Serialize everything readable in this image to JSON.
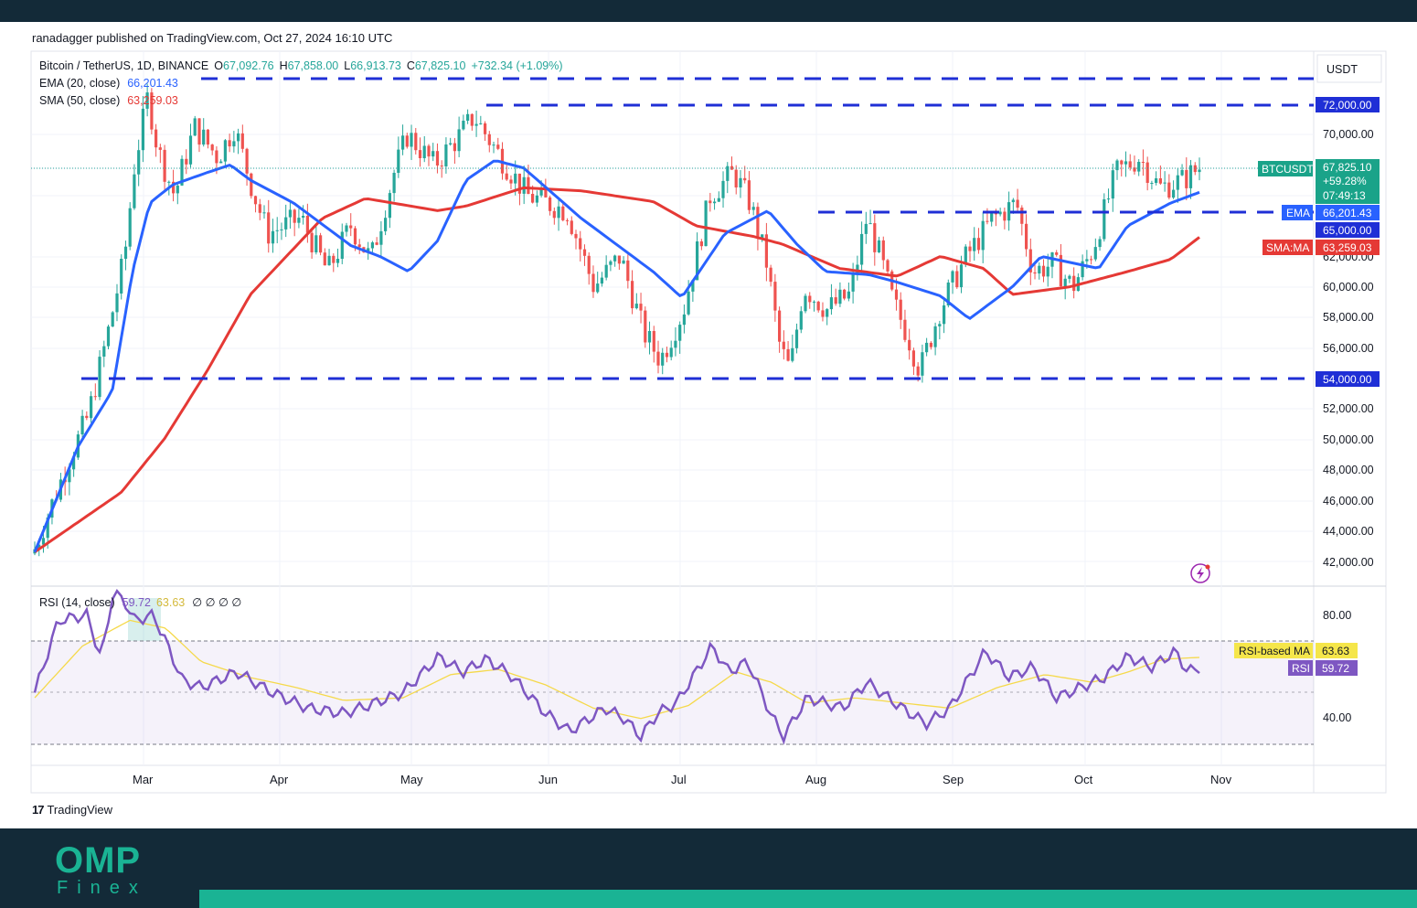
{
  "header": {
    "publish_text": "ranadagger published on TradingView.com, Oct 27, 2024 16:10 UTC",
    "symbol": "Bitcoin / TetherUS, 1D, BINANCE",
    "open": "67,092.76",
    "high": "67,858.00",
    "low": "66,913.73",
    "close": "67,825.10",
    "change": "+732.34 (+1.09%)",
    "ema_label": "EMA (20, close)",
    "ema_value": "66,201.43",
    "sma_label": "SMA (50, close)",
    "sma_value": "63,259.03",
    "rsi_label": "RSI (14, close)",
    "rsi_value": "59.72",
    "rsi_ma_value": "63.63",
    "rsi_extra": "∅ ∅ ∅ ∅"
  },
  "price_axis": {
    "currency": "USDT",
    "ticks": [
      "70,000.00",
      "62,000.00",
      "60,000.00",
      "58,000.00",
      "56,000.00",
      "52,000.00",
      "50,000.00",
      "48,000.00",
      "46,000.00",
      "44,000.00",
      "42,000.00"
    ],
    "rsi_ticks": [
      "80.00",
      "40.00"
    ]
  },
  "tags": {
    "level_72": "72,000.00",
    "symbol_tag": "BTCUSDT",
    "last_price": "67,825.10",
    "pct": "+59.28%",
    "countdown": "07:49:13",
    "ema_tag": "EMA",
    "ema_val": "66,201.43",
    "level_65": "65,000.00",
    "sma_tag": "SMA:MA",
    "sma_val": "63,259.03",
    "level_54": "54,000.00",
    "rsi_ma_tag": "RSI-based MA",
    "rsi_ma_val": "63.63",
    "rsi_tag": "RSI",
    "rsi_val": "59.72"
  },
  "time_axis": [
    "Mar",
    "Apr",
    "May",
    "Jun",
    "Jul",
    "Aug",
    "Sep",
    "Oct",
    "Nov"
  ],
  "footer": {
    "tradingview": "TradingView",
    "brand_big": "OMP",
    "brand_small": "Finex"
  },
  "colors": {
    "up": "#26a69a",
    "down": "#ef5350",
    "ema": "#2962ff",
    "sma": "#e53935",
    "rsi": "#7e57c2",
    "rsi_ma": "#f5d94a",
    "levels": "#1f2fd6"
  },
  "chart_data": {
    "type": "candlestick",
    "title": "Bitcoin / TetherUS, 1D, BINANCE",
    "x_range": [
      "2024-02-01",
      "2024-10-27"
    ],
    "ylim": [
      41000,
      74500
    ],
    "horizontal_levels": [
      73500,
      72000,
      65000,
      54000
    ],
    "ema20_close": [
      [
        0,
        42600
      ],
      [
        15,
        49500
      ],
      [
        27,
        53200
      ],
      [
        34,
        61000
      ],
      [
        40,
        65500
      ],
      [
        48,
        66700
      ],
      [
        60,
        67500
      ],
      [
        68,
        68000
      ],
      [
        75,
        67000
      ],
      [
        90,
        65500
      ],
      [
        110,
        62700
      ],
      [
        120,
        62000
      ],
      [
        130,
        61000
      ],
      [
        140,
        63000
      ],
      [
        150,
        67000
      ],
      [
        160,
        68300
      ],
      [
        170,
        67800
      ],
      [
        190,
        64500
      ],
      [
        215,
        61000
      ],
      [
        225,
        59300
      ],
      [
        240,
        63500
      ],
      [
        255,
        65000
      ],
      [
        265,
        62800
      ],
      [
        275,
        61000
      ],
      [
        290,
        60800
      ],
      [
        300,
        60300
      ],
      [
        315,
        59400
      ],
      [
        325,
        57900
      ],
      [
        340,
        60000
      ],
      [
        350,
        62000
      ],
      [
        370,
        61200
      ],
      [
        380,
        64000
      ],
      [
        395,
        65500
      ],
      [
        405,
        66201
      ]
    ],
    "sma50_close": [
      [
        0,
        42600
      ],
      [
        30,
        46500
      ],
      [
        45,
        50000
      ],
      [
        60,
        54500
      ],
      [
        75,
        59500
      ],
      [
        100,
        64500
      ],
      [
        115,
        65800
      ],
      [
        140,
        65000
      ],
      [
        150,
        65300
      ],
      [
        170,
        66500
      ],
      [
        190,
        66300
      ],
      [
        215,
        65600
      ],
      [
        230,
        64000
      ],
      [
        250,
        63300
      ],
      [
        260,
        62800
      ],
      [
        280,
        61200
      ],
      [
        300,
        60700
      ],
      [
        315,
        62000
      ],
      [
        330,
        61200
      ],
      [
        340,
        59500
      ],
      [
        360,
        60000
      ],
      [
        380,
        61000
      ],
      [
        395,
        61800
      ],
      [
        405,
        63259
      ]
    ],
    "rsi": [
      [
        0,
        50
      ],
      [
        10,
        78
      ],
      [
        22,
        80
      ],
      [
        28,
        63
      ],
      [
        33,
        89
      ],
      [
        38,
        85
      ],
      [
        42,
        78
      ],
      [
        50,
        80
      ],
      [
        55,
        70
      ],
      [
        62,
        55
      ],
      [
        70,
        52
      ],
      [
        85,
        58
      ],
      [
        100,
        50
      ],
      [
        115,
        44
      ],
      [
        130,
        42
      ],
      [
        140,
        45
      ],
      [
        155,
        50
      ],
      [
        170,
        64
      ],
      [
        180,
        58
      ],
      [
        190,
        63
      ],
      [
        200,
        57
      ],
      [
        215,
        42
      ],
      [
        225,
        35
      ],
      [
        240,
        44
      ],
      [
        248,
        40
      ],
      [
        255,
        33
      ],
      [
        262,
        42
      ],
      [
        270,
        46
      ],
      [
        285,
        68
      ],
      [
        292,
        58
      ],
      [
        300,
        62
      ],
      [
        310,
        41
      ],
      [
        315,
        33
      ],
      [
        325,
        48
      ],
      [
        340,
        44
      ],
      [
        350,
        54
      ],
      [
        365,
        44
      ],
      [
        375,
        38
      ],
      [
        385,
        44
      ],
      [
        400,
        66
      ],
      [
        410,
        56
      ],
      [
        420,
        60
      ],
      [
        430,
        48
      ],
      [
        440,
        52
      ],
      [
        450,
        56
      ],
      [
        460,
        64
      ],
      [
        470,
        60
      ],
      [
        480,
        66
      ],
      [
        485,
        58
      ],
      [
        490,
        59.72
      ]
    ],
    "rsi_ma": [
      [
        0,
        48
      ],
      [
        20,
        68
      ],
      [
        40,
        78
      ],
      [
        55,
        75
      ],
      [
        70,
        62
      ],
      [
        90,
        56
      ],
      [
        110,
        52
      ],
      [
        130,
        47
      ],
      [
        155,
        48
      ],
      [
        175,
        57
      ],
      [
        195,
        59
      ],
      [
        215,
        53
      ],
      [
        235,
        44
      ],
      [
        255,
        40
      ],
      [
        275,
        45
      ],
      [
        295,
        58
      ],
      [
        310,
        54
      ],
      [
        325,
        46
      ],
      [
        345,
        48
      ],
      [
        365,
        46
      ],
      [
        385,
        44
      ],
      [
        405,
        52
      ],
      [
        425,
        57
      ],
      [
        445,
        54
      ],
      [
        460,
        58
      ],
      [
        475,
        63
      ],
      [
        490,
        63.63
      ]
    ],
    "rsi_band": [
      30,
      70
    ],
    "last_price": 67825.1,
    "ema20_last": 66201.43,
    "sma50_last": 63259.03
  }
}
